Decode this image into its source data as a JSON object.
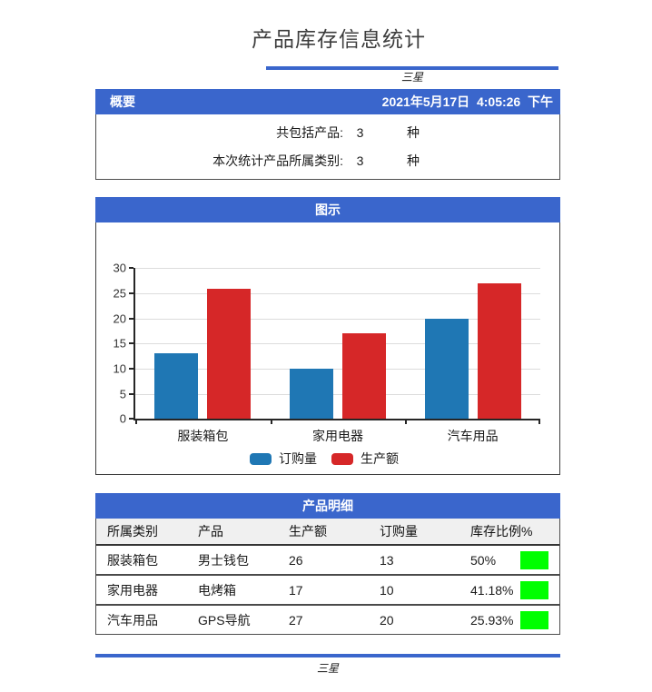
{
  "page": {
    "title": "产品库存信息统计",
    "brand_top": "三星",
    "brand_bottom": "三星"
  },
  "summary": {
    "header": "概要",
    "datetime": "2021年5月17日  4:05:26  下午",
    "rows": [
      {
        "label": "共包括产品:",
        "value": "3",
        "unit": "种"
      },
      {
        "label": "本次统计产品所属类别:",
        "value": "3",
        "unit": "种"
      }
    ]
  },
  "chart_section": {
    "header": "图示"
  },
  "chart_data": {
    "type": "bar",
    "title": "",
    "categories": [
      "服装箱包",
      "家用电器",
      "汽车用品"
    ],
    "series": [
      {
        "name": "订购量",
        "color": "#1F77B4",
        "values": [
          13,
          10,
          20
        ]
      },
      {
        "name": "生产额",
        "color": "#D62728",
        "values": [
          26,
          17,
          27
        ]
      }
    ],
    "xlabel": "",
    "ylabel": "",
    "ylim": [
      0,
      30
    ],
    "yticks": [
      0,
      5,
      10,
      15,
      20,
      25,
      30
    ],
    "grid": true,
    "legend_position": "bottom"
  },
  "details": {
    "header": "产品明细",
    "columns": [
      "所属类别",
      "产品",
      "生产额",
      "订购量",
      "库存比例%"
    ],
    "rows": [
      {
        "category": "服装箱包",
        "product": "男士钱包",
        "production": "26",
        "orders": "13",
        "ratio": "50%"
      },
      {
        "category": "家用电器",
        "product": "电烤箱",
        "production": "17",
        "orders": "10",
        "ratio": "41.18%"
      },
      {
        "category": "汽车用品",
        "product": "GPS导航",
        "production": "27",
        "orders": "20",
        "ratio": "25.93%"
      }
    ],
    "indicator_color": "#00FF00"
  },
  "colors": {
    "accent_blue": "#3A66CC",
    "bar_blue": "#1F77B4",
    "bar_red": "#D62728",
    "green": "#00FF00"
  }
}
